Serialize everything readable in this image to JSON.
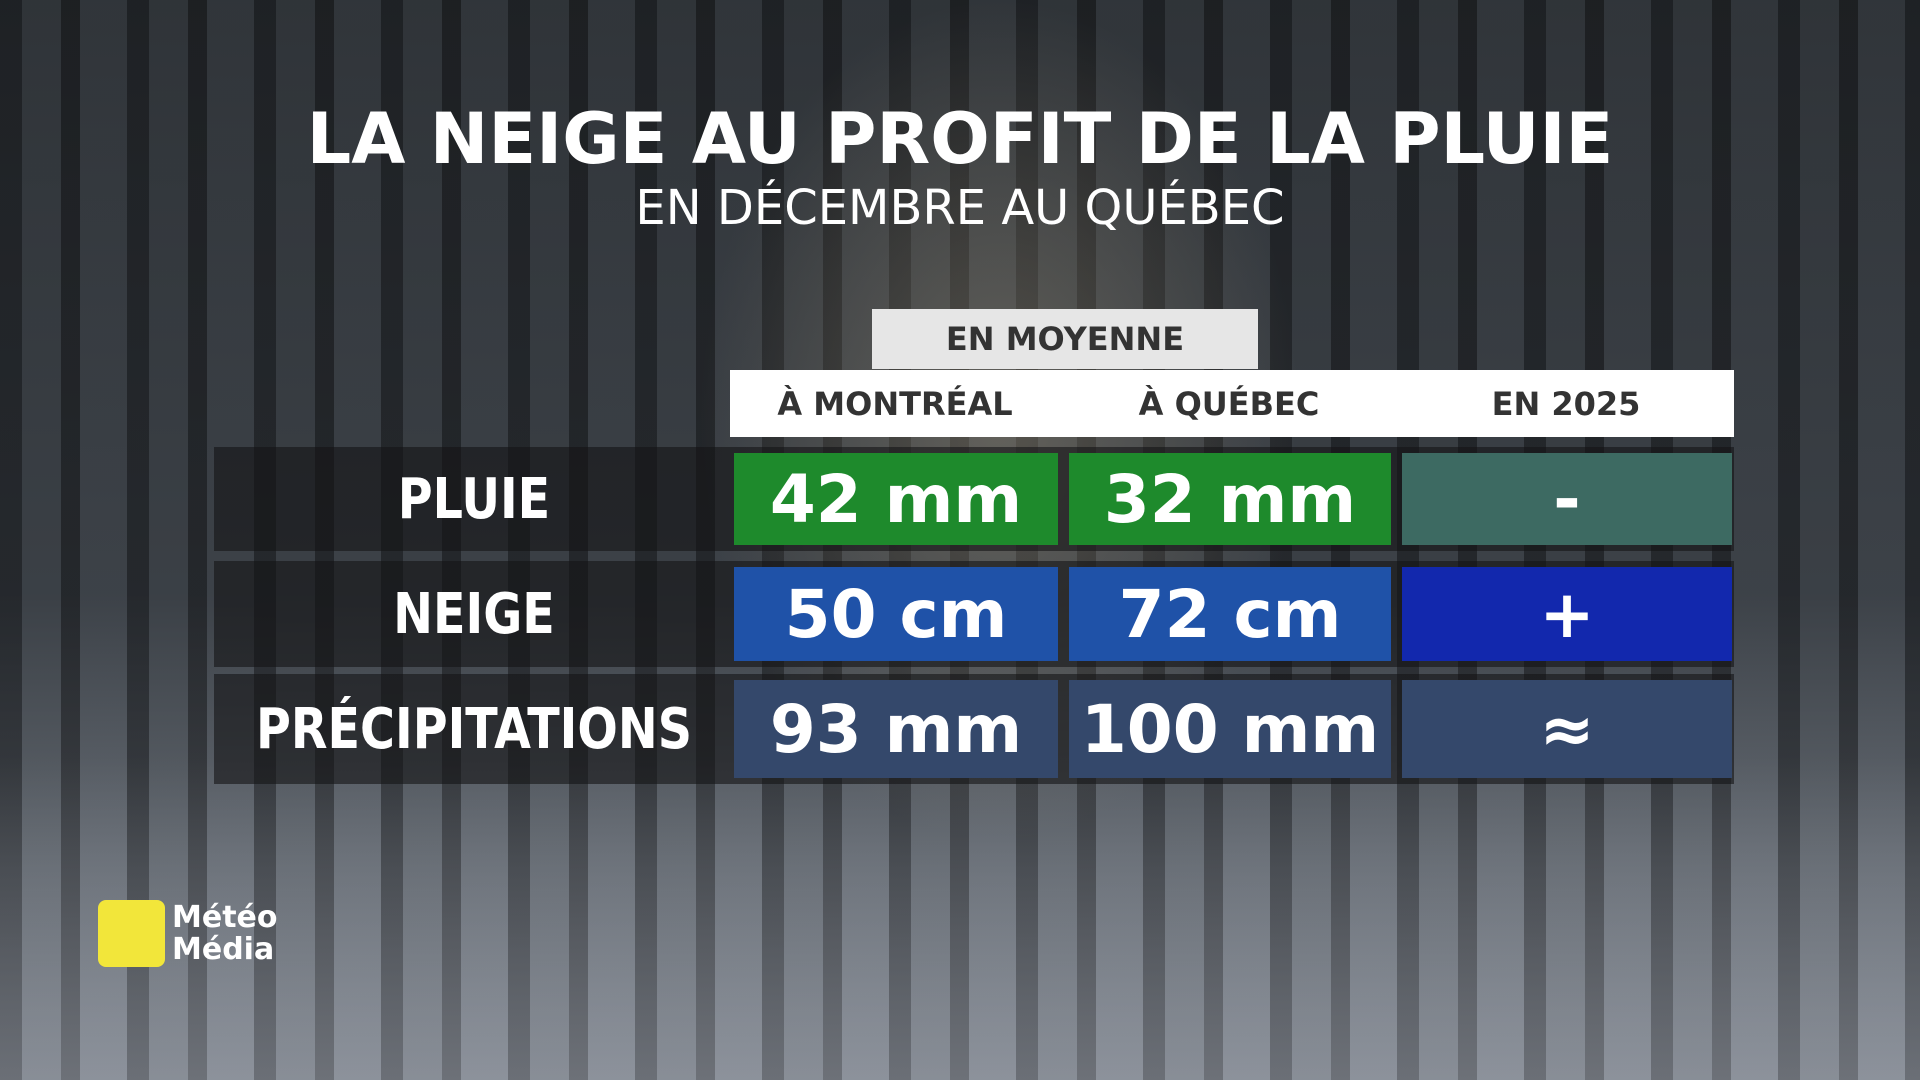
{
  "header": {
    "title": "LA NEIGE AU PROFIT DE LA PLUIE",
    "subtitle": "EN DÉCEMBRE AU QUÉBEC"
  },
  "table": {
    "group_label": "EN MOYENNE",
    "columns": [
      "À MONTRÉAL",
      "À QUÉBEC",
      "EN 2025"
    ],
    "rows": [
      {
        "label": "PLUIE",
        "cells": [
          "42 mm",
          "32 mm",
          "-"
        ]
      },
      {
        "label": "NEIGE",
        "cells": [
          "50 cm",
          "72 cm",
          "+"
        ]
      },
      {
        "label": "PRÉCIPITATIONS",
        "cells": [
          "93 mm",
          "100 mm",
          "≈"
        ]
      }
    ]
  },
  "logo": {
    "line1": "Météo",
    "line2": "Média"
  }
}
